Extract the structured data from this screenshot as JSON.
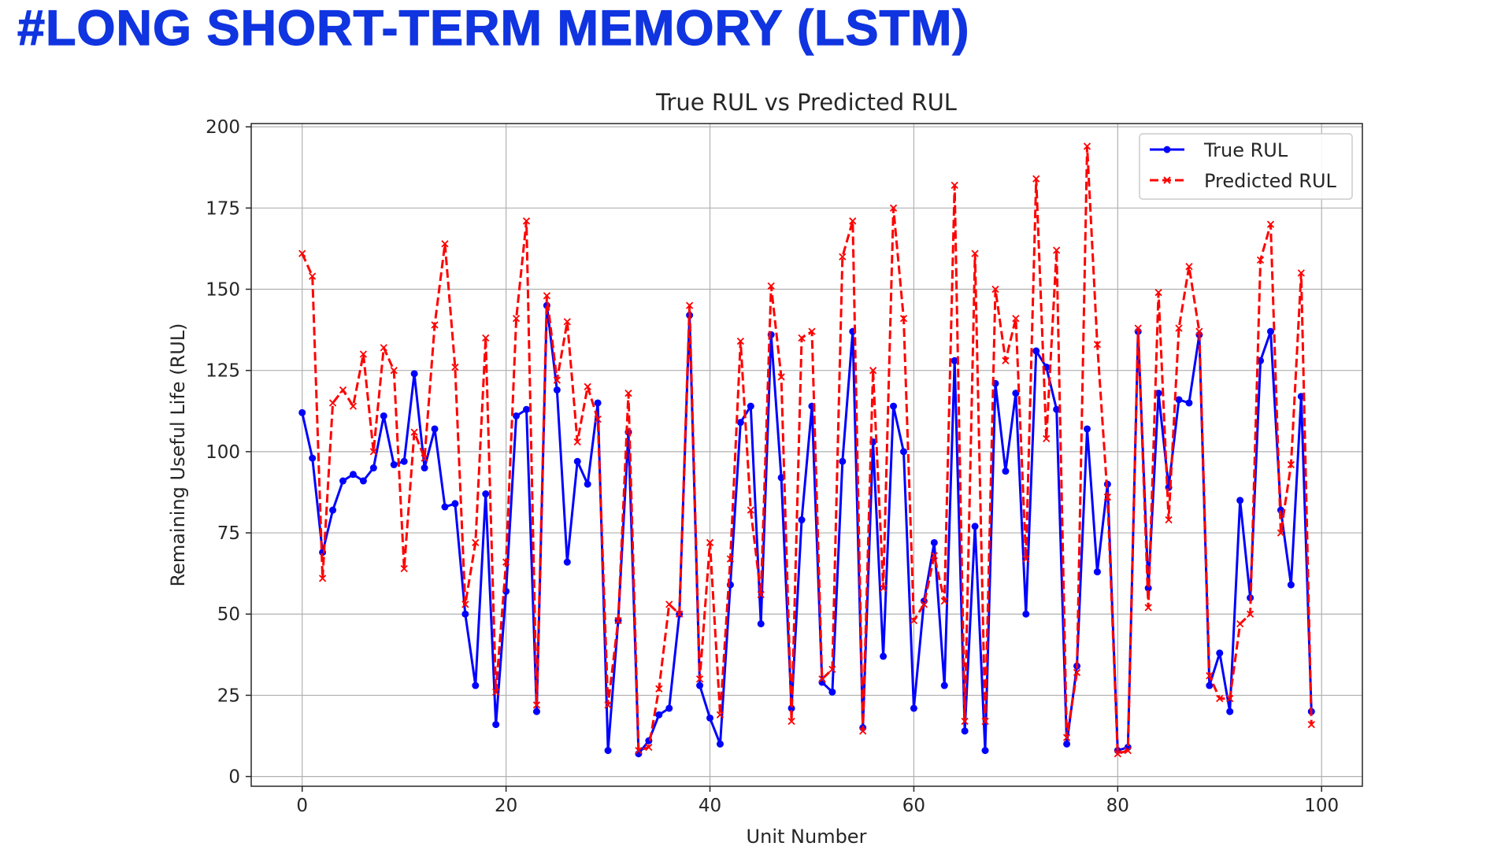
{
  "heading": "#Long Short-Term Memory (LSTM)",
  "colors": {
    "heading": "#1034e0",
    "true_series": "#0000ff",
    "predicted_series": "#ff0000",
    "grid": "#b0b0b0"
  },
  "chart_data": {
    "type": "line",
    "title": "True RUL vs Predicted RUL",
    "xlabel": "Unit Number",
    "ylabel": "Remaining Useful Life (RUL)",
    "xlim": [
      -5,
      104
    ],
    "ylim": [
      -3,
      201
    ],
    "xticks": [
      0,
      20,
      40,
      60,
      80,
      100
    ],
    "yticks": [
      0,
      25,
      50,
      75,
      100,
      125,
      150,
      175,
      200
    ],
    "grid": true,
    "legend_position": "top-right",
    "x": [
      0,
      1,
      2,
      3,
      4,
      5,
      6,
      7,
      8,
      9,
      10,
      11,
      12,
      13,
      14,
      15,
      16,
      17,
      18,
      19,
      20,
      21,
      22,
      23,
      24,
      25,
      26,
      27,
      28,
      29,
      30,
      31,
      32,
      33,
      34,
      35,
      36,
      37,
      38,
      39,
      40,
      41,
      42,
      43,
      44,
      45,
      46,
      47,
      48,
      49,
      50,
      51,
      52,
      53,
      54,
      55,
      56,
      57,
      58,
      59,
      60,
      61,
      62,
      63,
      64,
      65,
      66,
      67,
      68,
      69,
      70,
      71,
      72,
      73,
      74,
      75,
      76,
      77,
      78,
      79,
      80,
      81,
      82,
      83,
      84,
      85,
      86,
      87,
      88,
      89,
      90,
      91,
      92,
      93,
      94,
      95,
      96,
      97,
      98,
      99
    ],
    "series": [
      {
        "name": "True RUL",
        "style": "solid",
        "marker": "dot",
        "values": [
          112,
          98,
          69,
          82,
          91,
          93,
          91,
          95,
          111,
          96,
          97,
          124,
          95,
          107,
          83,
          84,
          50,
          28,
          87,
          16,
          57,
          111,
          113,
          20,
          145,
          119,
          66,
          97,
          90,
          115,
          8,
          48,
          106,
          7,
          11,
          19,
          21,
          50,
          142,
          28,
          18,
          10,
          59,
          109,
          114,
          47,
          136,
          92,
          21,
          79,
          114,
          29,
          26,
          97,
          137,
          15,
          103,
          37,
          114,
          100,
          21,
          54,
          72,
          28,
          128,
          14,
          77,
          8,
          121,
          94,
          118,
          50,
          131,
          126,
          113,
          10,
          34,
          107,
          63,
          90,
          8,
          9,
          137,
          58,
          118,
          89,
          116,
          115,
          136,
          28,
          38,
          20,
          85,
          55,
          128,
          137,
          82,
          59,
          117,
          20
        ]
      },
      {
        "name": "Predicted RUL",
        "style": "dashed",
        "marker": "x",
        "values": [
          161,
          154,
          61,
          115,
          119,
          114,
          130,
          100,
          132,
          125,
          64,
          106,
          98,
          139,
          164,
          126,
          53,
          72,
          135,
          26,
          66,
          141,
          171,
          22,
          148,
          122,
          140,
          103,
          120,
          110,
          22,
          48,
          118,
          8,
          9,
          27,
          53,
          50,
          145,
          30,
          72,
          19,
          67,
          134,
          82,
          56,
          151,
          123,
          17,
          135,
          137,
          30,
          33,
          160,
          171,
          14,
          125,
          58,
          175,
          141,
          48,
          53,
          68,
          54,
          182,
          17,
          161,
          17,
          150,
          128,
          141,
          67,
          184,
          104,
          162,
          12,
          32,
          194,
          133,
          86,
          7,
          8,
          138,
          52,
          149,
          79,
          138,
          157,
          137,
          31,
          24,
          24,
          47,
          50,
          159,
          170,
          75,
          96,
          155,
          16
        ]
      }
    ]
  }
}
